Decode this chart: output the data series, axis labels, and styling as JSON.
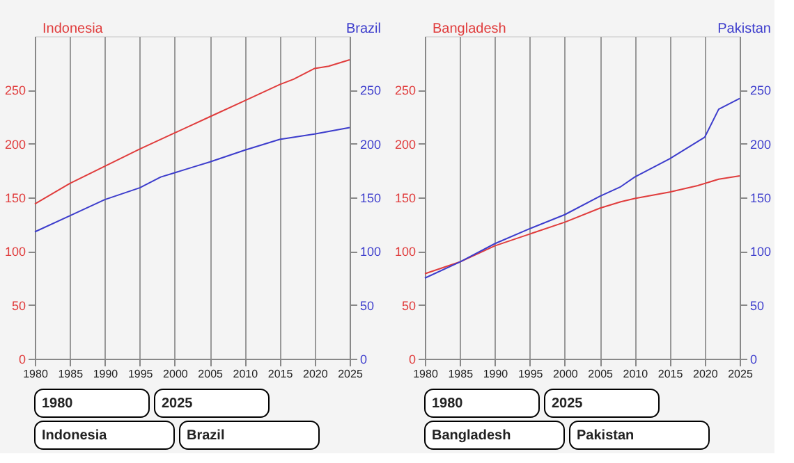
{
  "chart_data": [
    {
      "type": "line",
      "xlim": [
        1980,
        2025
      ],
      "xticks": [
        1980,
        1985,
        1990,
        1995,
        2000,
        2005,
        2010,
        2015,
        2020,
        2025
      ],
      "ylim": [
        0,
        300
      ],
      "yticks": [
        0,
        50,
        100,
        150,
        200,
        250
      ],
      "y2lim": [
        0,
        300
      ],
      "y2ticks": [
        0,
        50,
        100,
        150,
        200,
        250
      ],
      "grid": "x",
      "annotations": [
        "1980",
        "2025",
        "Indonesia",
        "Brazil"
      ],
      "series": [
        {
          "name": "Indonesia",
          "color": "#e03c3c",
          "x": [
            1980,
            1985,
            1990,
            1995,
            2000,
            2005,
            2010,
            2015,
            2017,
            2020,
            2022,
            2025
          ],
          "values": [
            144,
            163,
            179,
            195,
            210,
            225,
            240,
            255,
            260,
            270,
            272,
            278
          ]
        },
        {
          "name": "Brazil",
          "color": "#3c3ccc",
          "axis": "y2",
          "x": [
            1980,
            1985,
            1990,
            1995,
            1998,
            2000,
            2003,
            2005,
            2010,
            2015,
            2020,
            2025
          ],
          "values": [
            118,
            133,
            148,
            159,
            169,
            173,
            179,
            183,
            194,
            204,
            209,
            215
          ]
        }
      ]
    },
    {
      "type": "line",
      "xlim": [
        1980,
        2025
      ],
      "xticks": [
        1980,
        1985,
        1990,
        1995,
        2000,
        2005,
        2010,
        2015,
        2020,
        2025
      ],
      "ylim": [
        0,
        300
      ],
      "yticks": [
        0,
        50,
        100,
        150,
        200,
        250
      ],
      "y2lim": [
        0,
        300
      ],
      "y2ticks": [
        0,
        50,
        100,
        150,
        200,
        250
      ],
      "grid": "x",
      "annotations": [
        "1980",
        "2025",
        "Bangladesh",
        "Pakistan"
      ],
      "series": [
        {
          "name": "Bangladesh",
          "color": "#e03c3c",
          "x": [
            1980,
            1985,
            1990,
            1995,
            2000,
            2005,
            2008,
            2010,
            2015,
            2019,
            2022,
            2025
          ],
          "values": [
            79,
            90,
            105,
            116,
            127,
            140,
            146,
            149,
            155,
            161,
            167,
            170
          ]
        },
        {
          "name": "Pakistan",
          "color": "#3c3ccc",
          "axis": "y2",
          "x": [
            1980,
            1985,
            1990,
            1995,
            2000,
            2005,
            2008,
            2010,
            2015,
            2020,
            2022,
            2025
          ],
          "values": [
            75,
            90,
            107,
            121,
            134,
            151,
            160,
            169,
            186,
            206,
            232,
            242
          ]
        }
      ]
    }
  ]
}
